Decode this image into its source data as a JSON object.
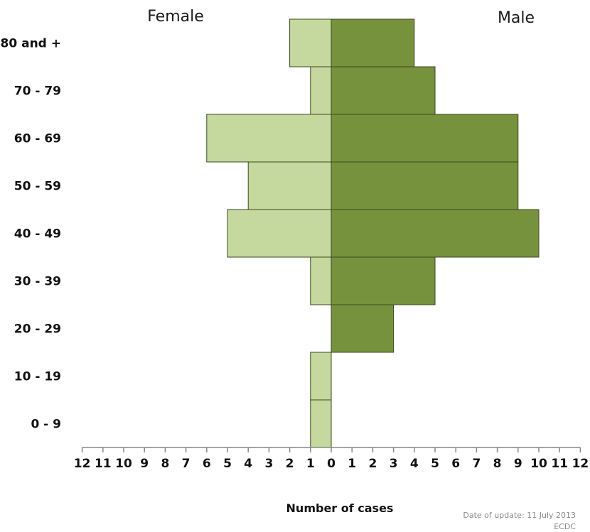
{
  "chart_data": {
    "type": "bar",
    "orientation": "horizontal",
    "layout": "population-pyramid",
    "categories": [
      "0 - 9",
      "10 - 19",
      "20 - 29",
      "30 - 39",
      "40 - 49",
      "50 - 59",
      "60 - 69",
      "70 - 79",
      "80 and +"
    ],
    "series": [
      {
        "name": "Female",
        "values": [
          1,
          1,
          0,
          1,
          5,
          4,
          6,
          1,
          2
        ],
        "color": "#c5d89d"
      },
      {
        "name": "Male",
        "values": [
          0,
          0,
          3,
          5,
          10,
          9,
          9,
          5,
          4
        ],
        "color": "#76923c"
      }
    ],
    "xlabel": "Number of cases",
    "ylabel": "",
    "xlim": [
      -12,
      12
    ],
    "x_ticks": [
      12,
      11,
      10,
      9,
      8,
      7,
      6,
      5,
      4,
      3,
      2,
      1,
      0,
      1,
      2,
      3,
      4,
      5,
      6,
      7,
      8,
      9,
      10,
      11,
      12
    ],
    "grid": false,
    "legend": "none"
  },
  "footer": {
    "update_note": "Date of update: 11 July 2013",
    "source": "ECDC"
  }
}
